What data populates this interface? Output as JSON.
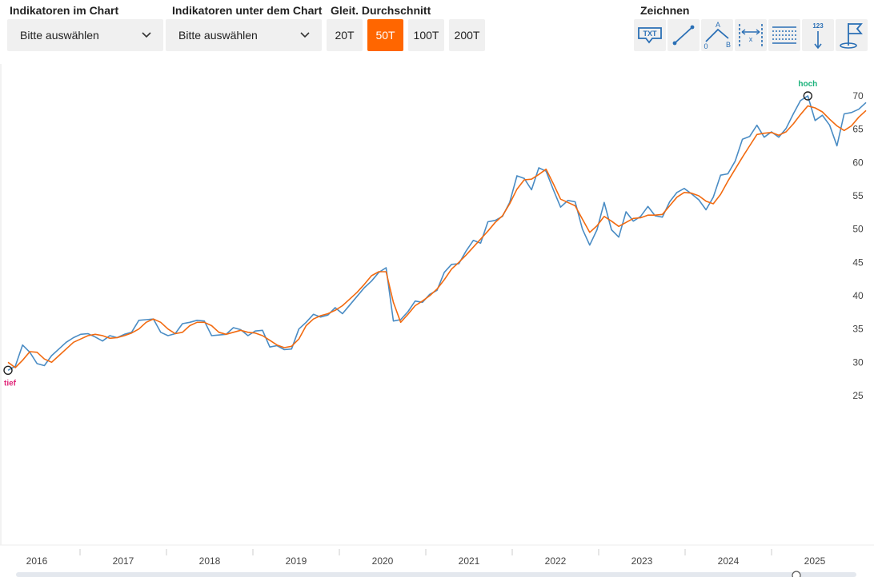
{
  "toolbar": {
    "indicators_in_chart": {
      "label": "Indikatoren im Chart",
      "value": "Bitte auswählen"
    },
    "indicators_below_chart": {
      "label": "Indikatoren unter dem Chart",
      "value": "Bitte auswählen"
    },
    "moving_average": {
      "label": "Gleit. Durchschnitt",
      "options": [
        "20T",
        "50T",
        "100T",
        "200T"
      ],
      "selected": "50T"
    },
    "draw": {
      "label": "Zeichnen",
      "tools": [
        {
          "name": "text-tool-icon",
          "text": "TXT"
        },
        {
          "name": "line-tool-icon",
          "text": ""
        },
        {
          "name": "abc-pattern-tool-icon",
          "text": "A 0 B"
        },
        {
          "name": "horizontal-measure-tool-icon",
          "text": "x"
        },
        {
          "name": "fibonacci-tool-icon",
          "text": ""
        },
        {
          "name": "counter-arrow-tool-icon",
          "text": "123"
        },
        {
          "name": "flag-marker-tool-icon",
          "text": ""
        }
      ]
    }
  },
  "colors": {
    "price": "#4a8cc4",
    "average": "#f26a10",
    "accent": "#ff6600",
    "high": "#19b27a",
    "low": "#e0287a"
  },
  "chart_data": {
    "type": "line",
    "x_start": "2016",
    "x_end": "2025",
    "x_ticks": [
      "2016",
      "2017",
      "2018",
      "2019",
      "2020",
      "2021",
      "2022",
      "2023",
      "2024",
      "2025"
    ],
    "y_ticks": [
      25,
      30,
      35,
      40,
      45,
      50,
      55,
      60,
      65,
      70
    ],
    "ylim": [
      25,
      70
    ],
    "grid": false,
    "series": [
      {
        "color": "#4a8cc4",
        "values": [
          28.8,
          29.4,
          32.6,
          31.5,
          29.8,
          29.5,
          31.0,
          32.0,
          33.0,
          33.7,
          34.2,
          34.3,
          33.8,
          33.2,
          34.0,
          33.7,
          34.2,
          34.5,
          36.3,
          36.4,
          36.5,
          34.5,
          34.0,
          34.3,
          35.8,
          36.0,
          36.3,
          36.2,
          34.0,
          34.1,
          34.2,
          35.2,
          34.9,
          34.0,
          34.7,
          34.8,
          32.3,
          32.5,
          31.9,
          32.0,
          35.0,
          36.0,
          37.2,
          36.8,
          37.1,
          38.2,
          37.3,
          38.6,
          39.9,
          41.2,
          42.2,
          43.5,
          44.2,
          36.2,
          36.4,
          37.6,
          39.2,
          39.0,
          40.2,
          40.8,
          43.5,
          44.7,
          44.8,
          46.7,
          48.3,
          47.9,
          51.1,
          51.3,
          51.9,
          54.0,
          58.0,
          57.6,
          55.9,
          59.2,
          58.7,
          55.9,
          53.3,
          54.3,
          54.1,
          50.0,
          47.6,
          49.9,
          54.0,
          49.9,
          48.8,
          52.6,
          51.2,
          51.9,
          53.4,
          52.0,
          51.8,
          54.1,
          55.5,
          56.1,
          55.3,
          54.4,
          52.9,
          54.8,
          58.1,
          58.3,
          60.2,
          63.5,
          63.9,
          65.6,
          63.8,
          64.6,
          63.8,
          65.1,
          67.3,
          69.3,
          70.0,
          66.3,
          67.1,
          65.6,
          62.5,
          67.3,
          67.5,
          68.0,
          69.0
        ]
      },
      {
        "color": "#f26a10",
        "values": [
          30.0,
          29.2,
          30.3,
          31.6,
          31.5,
          30.5,
          30.0,
          31.0,
          32.0,
          33.0,
          33.5,
          34.0,
          34.2,
          34.0,
          33.6,
          33.7,
          34.0,
          34.4,
          35.0,
          36.0,
          36.5,
          36.0,
          35.0,
          34.3,
          34.5,
          35.5,
          36.0,
          36.0,
          35.5,
          34.5,
          34.2,
          34.5,
          34.8,
          34.5,
          34.4,
          34.0,
          33.3,
          32.6,
          32.2,
          32.4,
          33.5,
          35.5,
          36.5,
          37.0,
          37.3,
          37.8,
          38.5,
          39.5,
          40.5,
          41.7,
          43.0,
          43.6,
          43.6,
          39.0,
          36.0,
          37.2,
          38.5,
          39.2,
          40.0,
          41.0,
          42.4,
          44.0,
          45.0,
          46.1,
          47.3,
          48.5,
          49.7,
          51.0,
          52.0,
          53.8,
          56.0,
          57.4,
          57.5,
          58.2,
          59.0,
          56.8,
          54.5,
          54.0,
          53.5,
          51.5,
          49.5,
          50.5,
          51.9,
          51.2,
          50.4,
          51.0,
          51.6,
          51.7,
          52.1,
          52.1,
          52.2,
          53.5,
          54.8,
          55.5,
          55.4,
          55.0,
          54.2,
          53.8,
          55.2,
          57.2,
          59.0,
          60.8,
          62.5,
          64.2,
          64.4,
          64.5,
          64.1,
          64.6,
          65.8,
          67.2,
          68.5,
          68.2,
          67.6,
          66.5,
          65.5,
          64.8,
          65.5,
          66.8,
          67.8
        ]
      }
    ],
    "annotations": [
      {
        "label": "hoch",
        "type": "max"
      },
      {
        "label": "tief",
        "type": "min"
      }
    ]
  }
}
